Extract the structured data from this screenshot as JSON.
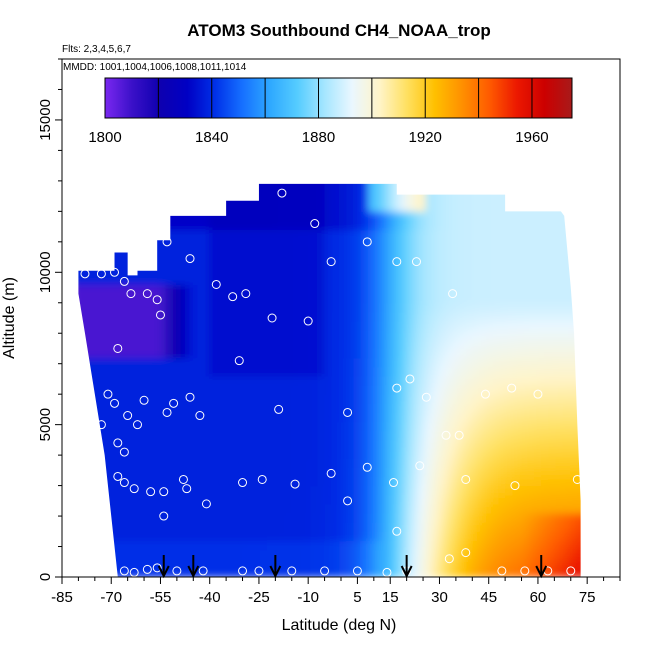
{
  "chart_data": {
    "type": "heatmap",
    "title": "ATOM3 Southbound CH4_NOAA_trop",
    "subtitle_flights": "Flts: 2,3,4,5,6,7",
    "subtitle_dates": "MMDD: 1001,1004,1006,1008,1011,1014",
    "xlabel": "Latitude (deg N)",
    "ylabel": "Altitude (m)",
    "xlim": [
      -85,
      85
    ],
    "ylim": [
      0,
      17000
    ],
    "x_ticks": [
      -85,
      -70,
      -55,
      -40,
      -25,
      -10,
      5,
      15,
      30,
      45,
      60,
      75
    ],
    "x_tick_labels": [
      "-85",
      "-70",
      "-55",
      "-40",
      "-25",
      "-10",
      "5",
      "15",
      "30",
      "45",
      "60",
      "75"
    ],
    "y_ticks": [
      0,
      5000,
      10000,
      15000
    ],
    "y_tick_labels": [
      "0",
      "5000",
      "10000",
      "15000"
    ],
    "colorbar": {
      "range": [
        1800,
        1975
      ],
      "ticks": [
        1800,
        1840,
        1880,
        1920,
        1960
      ],
      "tick_labels": [
        "1800",
        "1840",
        "1880",
        "1920",
        "1960"
      ],
      "colors": [
        "#7a28f0",
        "#3a10c8",
        "#0e00b0",
        "#0000c4",
        "#0030e8",
        "#1670ff",
        "#2ea8ff",
        "#55ccff",
        "#a6e6ff",
        "#eaf7ff",
        "#fff4c8",
        "#ffe060",
        "#ffc000",
        "#ff9000",
        "#ff5a00",
        "#ec1800",
        "#cc0000",
        "#a81a1a"
      ]
    },
    "profile_arrows_latitude": [
      -54,
      -45,
      -20,
      20,
      61
    ],
    "sample_points": [
      [
        -82,
        9950
      ],
      [
        -78,
        9950
      ],
      [
        -73,
        9950
      ],
      [
        -69,
        10000
      ],
      [
        -66,
        9700
      ],
      [
        -64,
        9300
      ],
      [
        -59,
        9300
      ],
      [
        -56,
        9100
      ],
      [
        -53,
        11000
      ],
      [
        -55,
        8600
      ],
      [
        -46,
        10450
      ],
      [
        -38,
        9600
      ],
      [
        -33,
        9200
      ],
      [
        -29,
        9300
      ],
      [
        -18,
        12600
      ],
      [
        -8,
        11600
      ],
      [
        -21,
        8500
      ],
      [
        -10,
        8400
      ],
      [
        -3,
        10350
      ],
      [
        8,
        11000
      ],
      [
        17,
        10350
      ],
      [
        23,
        10350
      ],
      [
        34,
        9300
      ],
      [
        -68,
        7500
      ],
      [
        -71,
        6000
      ],
      [
        -69,
        5700
      ],
      [
        -60,
        5800
      ],
      [
        -65,
        5300
      ],
      [
        -62,
        5000
      ],
      [
        -68,
        4400
      ],
      [
        -66,
        4100
      ],
      [
        -53,
        5400
      ],
      [
        -51,
        5700
      ],
      [
        -46,
        5900
      ],
      [
        -43,
        5300
      ],
      [
        -31,
        7100
      ],
      [
        -19,
        5500
      ],
      [
        2,
        5400
      ],
      [
        17,
        6200
      ],
      [
        21,
        6500
      ],
      [
        26,
        5900
      ],
      [
        32,
        4650
      ],
      [
        36,
        4650
      ],
      [
        44,
        6000
      ],
      [
        52,
        6200
      ],
      [
        60,
        6000
      ],
      [
        -73,
        5000
      ],
      [
        -68,
        3300
      ],
      [
        -66,
        3100
      ],
      [
        -63,
        2900
      ],
      [
        -58,
        2800
      ],
      [
        -54,
        2800
      ],
      [
        -54,
        2000
      ],
      [
        -48,
        3200
      ],
      [
        -47,
        2900
      ],
      [
        -41,
        2400
      ],
      [
        -30,
        3100
      ],
      [
        -24,
        3200
      ],
      [
        -14,
        3050
      ],
      [
        -3,
        3400
      ],
      [
        8,
        3600
      ],
      [
        16,
        3100
      ],
      [
        24,
        3650
      ],
      [
        38,
        3200
      ],
      [
        53,
        3000
      ],
      [
        72,
        3200
      ],
      [
        -70,
        200
      ],
      [
        -66,
        200
      ],
      [
        -63,
        150
      ],
      [
        -59,
        250
      ],
      [
        -56,
        300
      ],
      [
        -50,
        200
      ],
      [
        -42,
        200
      ],
      [
        -30,
        200
      ],
      [
        -25,
        200
      ],
      [
        -15,
        200
      ],
      [
        -5,
        200
      ],
      [
        5,
        200
      ],
      [
        14,
        150
      ],
      [
        20,
        200
      ],
      [
        33,
        600
      ],
      [
        38,
        800
      ],
      [
        49,
        200
      ],
      [
        56,
        200
      ],
      [
        63,
        200
      ],
      [
        70,
        200
      ],
      [
        2,
        2500
      ],
      [
        17,
        1500
      ]
    ],
    "grid_on": false
  }
}
